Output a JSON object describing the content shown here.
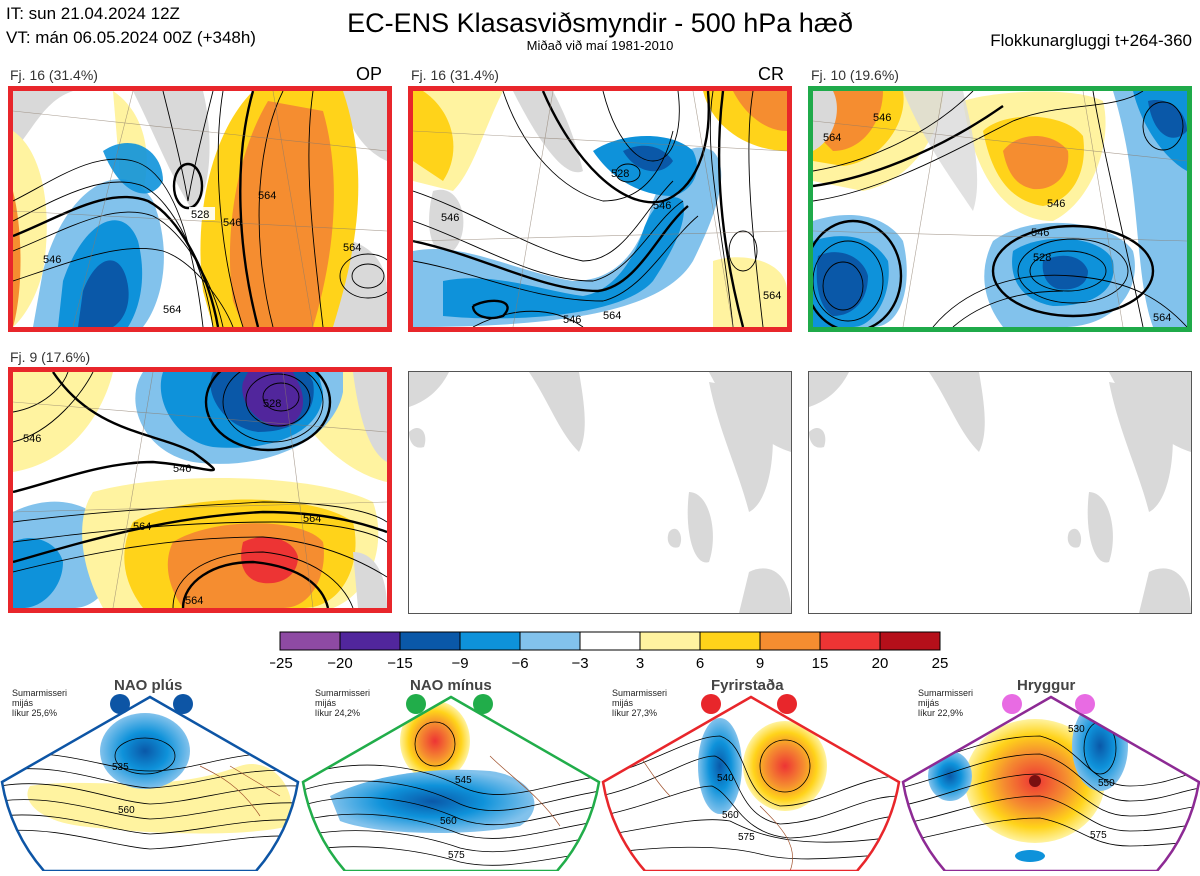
{
  "header": {
    "it_line": "IT: sun 21.04.2024 12Z",
    "vt_line": "VT: mán 06.05.2024 00Z  (+348h)",
    "title": "EC-ENS Klasasviðsmyndir - 500 hPa hæð",
    "subtitle": "Miðað við maí 1981-2010",
    "window": "Flokkunargluggi t+264-360"
  },
  "panels": [
    {
      "label": "Fj. 16 (31.4%)",
      "tag": "OP",
      "frame": "#e8262b"
    },
    {
      "label": "Fj. 16 (31.4%)",
      "tag": "CR",
      "frame": "#e8262b"
    },
    {
      "label": "Fj. 10 (19.6%)",
      "tag": "",
      "frame": "#1faa4a"
    },
    {
      "label": "Fj. 9 (17.6%)",
      "tag": "",
      "frame": "#e8262b"
    },
    {
      "label": "",
      "tag": "",
      "frame": "none"
    },
    {
      "label": "",
      "tag": "",
      "frame": "none"
    }
  ],
  "contour_labels": {
    "p1": [
      "528",
      "546",
      "564",
      "564",
      "546",
      "564"
    ],
    "p2": [
      "528",
      "546",
      "546",
      "564",
      "564",
      "546"
    ],
    "p3": [
      "546",
      "528",
      "546",
      "546",
      "564",
      "564"
    ],
    "p4": [
      "528",
      "546",
      "546",
      "564",
      "564",
      "564"
    ]
  },
  "chart_data": {
    "type": "heatmap",
    "title": "EC-ENS Klasasviðsmyndir - 500 hPa hæð",
    "colorbar": {
      "tick_labels": [
        "−25",
        "−20",
        "−15",
        "−9",
        "−6",
        "−3",
        "3",
        "6",
        "9",
        "15",
        "20",
        "25"
      ],
      "boundaries": [
        -25,
        -20,
        -15,
        -9,
        -6,
        -3,
        3,
        6,
        9,
        15,
        20,
        25
      ],
      "colors": [
        "#8e4aa3",
        "#51269c",
        "#0a58a8",
        "#0e92da",
        "#82c2ec",
        "#ffffff",
        "#fff3a0",
        "#ffd31a",
        "#f58d30",
        "#ed3434",
        "#b50f1a"
      ]
    },
    "clusters": [
      {
        "cluster": 16,
        "percent": 31.4,
        "tag": "OP"
      },
      {
        "cluster": 16,
        "percent": 31.4,
        "tag": "CR"
      },
      {
        "cluster": 10,
        "percent": 19.6,
        "tag": ""
      },
      {
        "cluster": 9,
        "percent": 17.6,
        "tag": ""
      }
    ]
  },
  "regimes": [
    {
      "name": "NAO plús",
      "line1": "Sumarmisseri",
      "line2": "mijás",
      "line3": "líkur 25,6%",
      "color": "#0d55a5",
      "labels": [
        "535",
        "560"
      ]
    },
    {
      "name": "NAO mínus",
      "line1": "Sumarmisseri",
      "line2": "mijás",
      "line3": "líkur 24,2%",
      "color": "#21ad4a",
      "labels": [
        "545",
        "560",
        "575"
      ]
    },
    {
      "name": "Fyrirstaða",
      "line1": "Sumarmisseri",
      "line2": "mijás",
      "line3": "líkur 27,3%",
      "color": "#e8262b",
      "labels": [
        "540",
        "560",
        "575"
      ]
    },
    {
      "name": "Hryggur",
      "line1": "Sumarmisseri",
      "line2": "mijás",
      "line3": "líkur 22,9%",
      "color": "#e86be3",
      "labels": [
        "530",
        "550",
        "575"
      ]
    }
  ]
}
